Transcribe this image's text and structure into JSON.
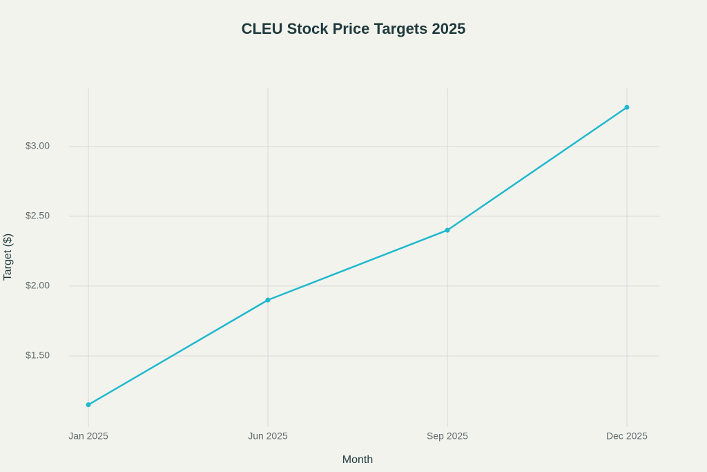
{
  "chart_data": {
    "type": "line",
    "title": "CLEU Stock Price Targets 2025",
    "x_label": "Month",
    "y_label": "Target ($)",
    "categories": [
      "Jan 2025",
      "Jun 2025",
      "Sep 2025",
      "Dec 2025"
    ],
    "series": [
      {
        "name": "Target",
        "color": "#1fb8cd",
        "values": [
          1.15,
          1.9,
          2.4,
          3.28
        ]
      }
    ],
    "ylim": [
      0.99,
      3.42
    ],
    "yticks": [
      {
        "value": 1.5,
        "label": "$1.50"
      },
      {
        "value": 2,
        "label": "$2.00"
      },
      {
        "value": 2.5,
        "label": "$2.50"
      },
      {
        "value": 3,
        "label": "$3.00"
      }
    ],
    "grid": true
  }
}
